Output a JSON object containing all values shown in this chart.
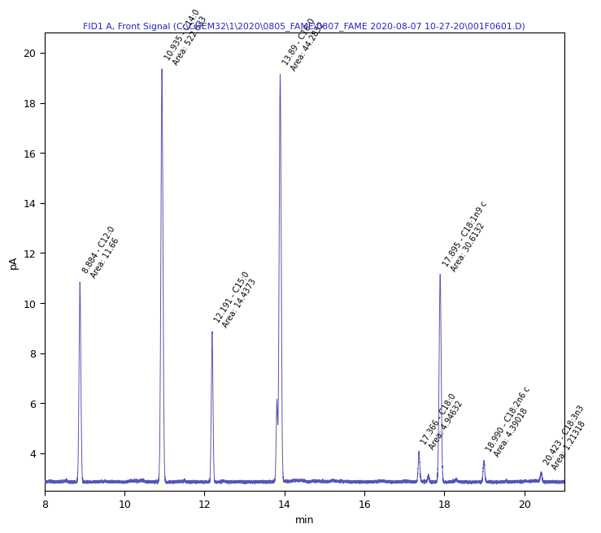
{
  "title": "FID1 A, Front Signal (C:\\CHEM32\\1\\2020\\0805_FAME\\0807_FAME 2020-08-07 10-27-20\\001F0601.D)",
  "xlabel": "min",
  "ylabel": "pA",
  "xlim": [
    8,
    21
  ],
  "ylim": [
    2.5,
    20.8
  ],
  "yticks": [
    4,
    6,
    8,
    10,
    12,
    14,
    16,
    18,
    20
  ],
  "xticks": [
    8,
    10,
    12,
    14,
    16,
    18,
    20
  ],
  "line_color": "#5555bb",
  "baseline_y": 2.85,
  "peaks": [
    {
      "rt": 8.884,
      "height": 10.8,
      "label": "8.884 - C12:0",
      "area_label": "Area: 11.66",
      "sigma": 0.022
    },
    {
      "rt": 10.935,
      "height": 19.3,
      "label": "10.935 - C14:0",
      "area_label": "Area: 522.633",
      "sigma": 0.025
    },
    {
      "rt": 12.191,
      "height": 8.85,
      "label": "12.191 - C15:0",
      "area_label": "Area: 14.4373",
      "sigma": 0.02
    },
    {
      "rt": 13.893,
      "height": 19.1,
      "label": "13.89 - C16:0",
      "area_label": "Area: 44.2832",
      "sigma": 0.025
    },
    {
      "rt": 17.366,
      "height": 4.0,
      "label": "17.366 - C18:0",
      "area_label": "Area: 4.94632",
      "sigma": 0.02
    },
    {
      "rt": 17.895,
      "height": 11.1,
      "label": "17.895 - C18:1n9 c",
      "area_label": "Area: 30.6132",
      "sigma": 0.025
    },
    {
      "rt": 18.99,
      "height": 3.7,
      "label": "18.990 - C18:2n6 c",
      "area_label": "Area: 4.39018",
      "sigma": 0.02
    },
    {
      "rt": 20.423,
      "height": 3.2,
      "label": "20.423 - C18:3n3",
      "area_label": "Area: 1.21318",
      "sigma": 0.02
    }
  ],
  "extra_peaks": [
    {
      "rt": 13.81,
      "height": 6.0,
      "sigma": 0.018
    },
    {
      "rt": 17.6,
      "height": 3.1,
      "sigma": 0.018
    },
    {
      "rt": 18.3,
      "height": 2.93,
      "sigma": 0.012
    },
    {
      "rt": 19.55,
      "height": 2.93,
      "sigma": 0.01
    },
    {
      "rt": 8.55,
      "height": 2.93,
      "sigma": 0.01
    },
    {
      "rt": 11.5,
      "height": 2.93,
      "sigma": 0.012
    }
  ],
  "title_color": "#2222cc",
  "title_fontsize": 7.8,
  "axis_label_fontsize": 9,
  "tick_fontsize": 9,
  "annot_fontsize": 7.0,
  "annot_rotation": 58
}
